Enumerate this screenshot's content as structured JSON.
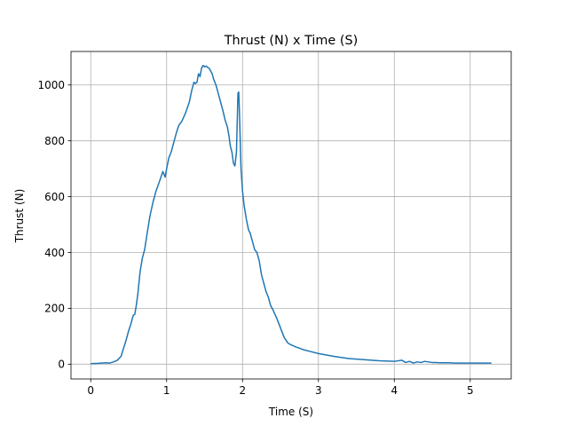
{
  "chart_data": {
    "type": "line",
    "title": "Thrust (N) x Time (S)",
    "xlabel": "Time (S)",
    "ylabel": "Thrust (N)",
    "xlim": [
      -0.26,
      5.54
    ],
    "ylim": [
      -53,
      1120
    ],
    "xticks": [
      0,
      1,
      2,
      3,
      4,
      5
    ],
    "yticks": [
      0,
      200,
      400,
      600,
      800,
      1000
    ],
    "grid": true,
    "line_color": "#1f77b4",
    "series": [
      {
        "x": [
          0,
          0.1,
          0.2,
          0.25,
          0.3,
          0.35,
          0.4,
          0.43,
          0.46,
          0.5,
          0.53,
          0.56,
          0.58,
          0.6,
          0.62,
          0.65,
          0.68,
          0.71,
          0.75,
          0.78,
          0.82,
          0.86,
          0.9,
          0.95,
          0.98,
          1.0,
          1.03,
          1.06,
          1.1,
          1.13,
          1.16,
          1.2,
          1.25,
          1.3,
          1.33,
          1.36,
          1.38,
          1.4,
          1.42,
          1.44,
          1.46,
          1.48,
          1.5,
          1.52,
          1.54,
          1.56,
          1.58,
          1.6,
          1.62,
          1.65,
          1.68,
          1.71,
          1.74,
          1.77,
          1.8,
          1.82,
          1.84,
          1.86,
          1.88,
          1.9,
          1.92,
          1.94,
          1.95,
          1.96,
          1.97,
          1.98,
          2.0,
          2.02,
          2.05,
          2.08,
          2.1,
          2.13,
          2.16,
          2.19,
          2.22,
          2.25,
          2.28,
          2.31,
          2.34,
          2.37,
          2.4,
          2.45,
          2.5,
          2.55,
          2.6,
          2.65,
          2.7,
          2.8,
          2.9,
          3.0,
          3.2,
          3.4,
          3.6,
          3.8,
          4.0,
          4.1,
          4.15,
          4.2,
          4.25,
          4.3,
          4.35,
          4.4,
          4.45,
          4.5,
          4.55,
          4.6,
          4.7,
          4.8,
          4.9,
          5.0,
          5.1,
          5.2,
          5.28
        ],
        "y": [
          2,
          3,
          5,
          4,
          8,
          14,
          28,
          55,
          80,
          120,
          145,
          175,
          178,
          210,
          250,
          330,
          380,
          410,
          480,
          530,
          580,
          620,
          650,
          690,
          670,
          700,
          740,
          760,
          800,
          830,
          855,
          870,
          900,
          940,
          980,
          1010,
          1005,
          1010,
          1040,
          1030,
          1060,
          1070,
          1065,
          1068,
          1063,
          1060,
          1050,
          1040,
          1020,
          1000,
          970,
          940,
          910,
          875,
          850,
          820,
          780,
          760,
          720,
          710,
          760,
          970,
          975,
          900,
          800,
          700,
          620,
          570,
          520,
          480,
          470,
          440,
          410,
          400,
          370,
          320,
          290,
          260,
          240,
          210,
          195,
          165,
          130,
          95,
          75,
          68,
          62,
          52,
          45,
          38,
          28,
          20,
          16,
          12,
          10,
          14,
          6,
          10,
          4,
          8,
          6,
          10,
          8,
          6,
          6,
          5,
          5,
          4,
          4,
          4,
          4,
          4,
          4
        ]
      }
    ]
  }
}
